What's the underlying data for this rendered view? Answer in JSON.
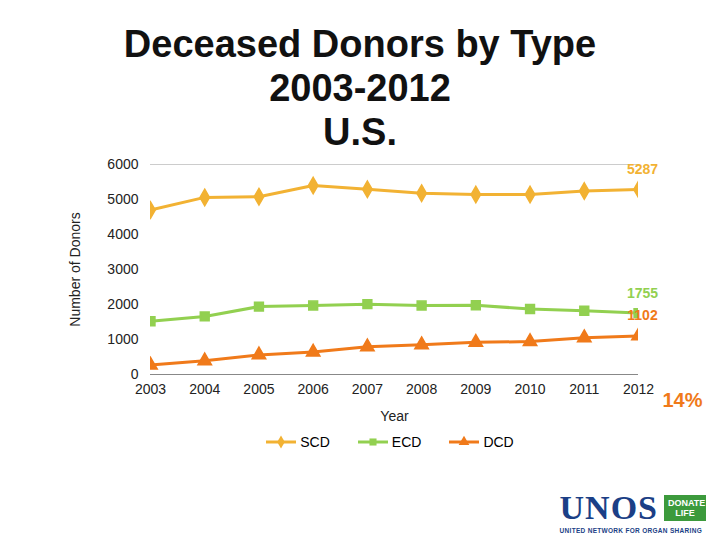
{
  "chart_data": {
    "type": "line",
    "title": "Deceased Donors by Type\n2003-2012\nU.S.",
    "x_label": "Year",
    "y_label": "Number of Donors",
    "x": [
      2003,
      2004,
      2005,
      2006,
      2007,
      2008,
      2009,
      2010,
      2011,
      2012
    ],
    "xlim": [
      2003,
      2012
    ],
    "xticks": [
      2003,
      2004,
      2005,
      2006,
      2007,
      2008,
      2009,
      2010,
      2011,
      2012
    ],
    "ylim": [
      0,
      6000
    ],
    "yticks": [
      0,
      1000,
      2000,
      3000,
      4000,
      5000,
      6000
    ],
    "grid": false,
    "legend": "bottom",
    "series": [
      {
        "name": "SCD",
        "color": "#f2b233",
        "marker": "diamond",
        "values": [
          4700,
          5060,
          5080,
          5400,
          5290,
          5180,
          5140,
          5140,
          5240,
          5287
        ]
      },
      {
        "name": "ECD",
        "color": "#92d050",
        "marker": "square",
        "values": [
          1520,
          1660,
          1940,
          1970,
          2010,
          1970,
          1980,
          1870,
          1820,
          1755
        ]
      },
      {
        "name": "DCD",
        "color": "#f07a1a",
        "marker": "triangle",
        "values": [
          270,
          390,
          560,
          640,
          790,
          850,
          920,
          940,
          1050,
          1102
        ]
      }
    ],
    "annotations": [
      {
        "series": "SCD",
        "x": 2012,
        "label": "5287"
      },
      {
        "series": "ECD",
        "x": 2012,
        "label": "1755"
      },
      {
        "series": "DCD",
        "x": 2012,
        "label": "1102"
      }
    ],
    "note": {
      "text": "14%",
      "series": "DCD"
    },
    "logo": {
      "main": "UNOS",
      "badge": "DONATE LIFE",
      "sub": "UNITED NETWORK FOR ORGAN SHARING"
    }
  }
}
